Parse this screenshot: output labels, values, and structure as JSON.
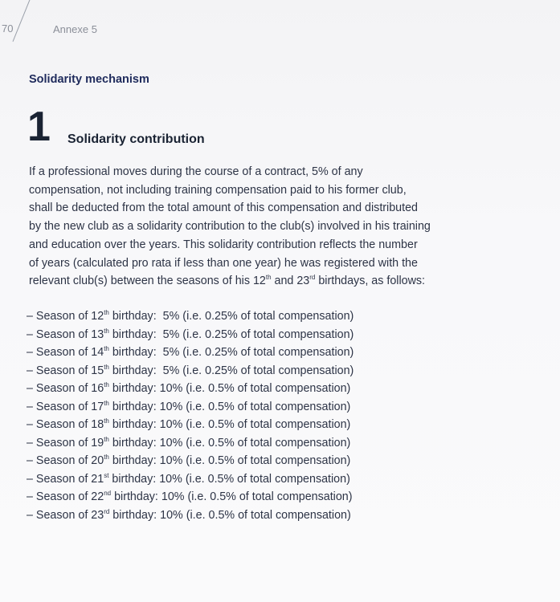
{
  "header": {
    "page_number": "70",
    "annex": "Annexe 5"
  },
  "section_title": "Solidarity mechanism",
  "subsection": {
    "number": "1",
    "title": "Solidarity contribution"
  },
  "intro_lines": [
    "If a professional moves during the course of a contract, 5% of any",
    "compensation, not including training compensation paid to his former club,",
    "shall be deducted from the total amount of this compensation and distributed",
    "by the new club as a solidarity contribution to the club(s) involved in his training",
    "and education over the years. This solidarity contribution reflects the number",
    "of years (calculated pro rata if less than one year) he was registered with the"
  ],
  "intro_last_line": {
    "before": "relevant club(s) between the seasons of his 12",
    "sup1": "th",
    "middle": " and 23",
    "sup2": "rd",
    "after": " birthdays, as follows:"
  },
  "seasons": [
    {
      "prefix": "– Season of 12",
      "sup": "th",
      "suffix": " birthday:",
      "value": "5% (i.e. 0.25% of total compensation)"
    },
    {
      "prefix": "– Season of 13",
      "sup": "th",
      "suffix": " birthday:",
      "value": "5% (i.e. 0.25% of total compensation)"
    },
    {
      "prefix": "– Season of 14",
      "sup": "th",
      "suffix": " birthday:",
      "value": "5% (i.e. 0.25% of total compensation)"
    },
    {
      "prefix": "– Season of 15",
      "sup": "th",
      "suffix": " birthday:",
      "value": "5% (i.e. 0.25% of total compensation)"
    },
    {
      "prefix": "– Season of 16",
      "sup": "th",
      "suffix": " birthday:",
      "value": "10% (i.e. 0.5% of total compensation)"
    },
    {
      "prefix": "– Season of 17",
      "sup": "th",
      "suffix": " birthday:",
      "value": "10% (i.e. 0.5% of total compensation)"
    },
    {
      "prefix": "– Season of 18",
      "sup": "th",
      "suffix": " birthday:",
      "value": "10% (i.e. 0.5% of total compensation)"
    },
    {
      "prefix": "– Season of 19",
      "sup": "th",
      "suffix": " birthday:",
      "value": "10% (i.e. 0.5% of total compensation)"
    },
    {
      "prefix": "– Season of 20",
      "sup": "th",
      "suffix": " birthday:",
      "value": "10% (i.e. 0.5% of total compensation)"
    },
    {
      "prefix": "– Season of 21",
      "sup": "st",
      "suffix": " birthday:",
      "value": "10% (i.e. 0.5% of total compensation)"
    },
    {
      "prefix": "– Season of 22",
      "sup": "nd",
      "suffix": " birthday:",
      "value": "10% (i.e. 0.5% of total compensation)"
    },
    {
      "prefix": "– Season of 23",
      "sup": "rd",
      "suffix": " birthday:",
      "value": "10% (i.e. 0.5% of total compensation)"
    }
  ]
}
